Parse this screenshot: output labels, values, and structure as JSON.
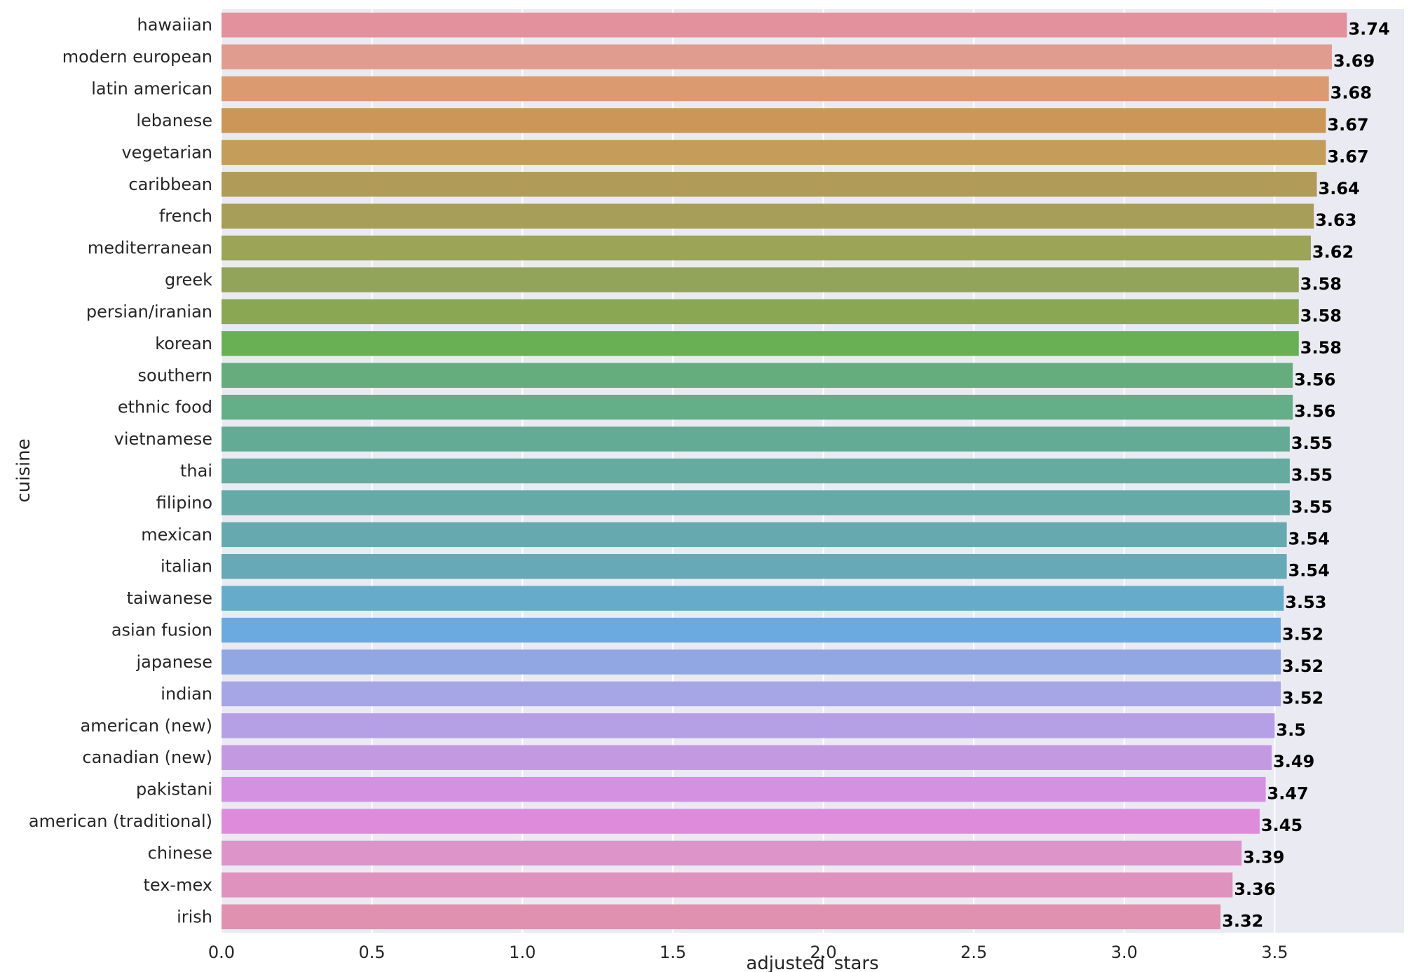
{
  "chart_data": {
    "type": "bar",
    "orientation": "horizontal",
    "xlabel": "adjusted_stars",
    "ylabel": "cuisine",
    "xlim": [
      0,
      3.93
    ],
    "xticks": [
      "0.0",
      "0.5",
      "1.0",
      "1.5",
      "2.0",
      "2.5",
      "3.0",
      "3.5"
    ],
    "grid": true,
    "categories": [
      "hawaiian",
      "modern european",
      "latin american",
      "lebanese",
      "vegetarian",
      "caribbean",
      "french",
      "mediterranean",
      "greek",
      "persian/iranian",
      "korean",
      "southern",
      "ethnic food",
      "vietnamese",
      "thai",
      "filipino",
      "mexican",
      "italian",
      "taiwanese",
      "asian fusion",
      "japanese",
      "indian",
      "american (new)",
      "canadian (new)",
      "pakistani",
      "american (traditional)",
      "chinese",
      "tex-mex",
      "irish"
    ],
    "values": [
      3.74,
      3.69,
      3.68,
      3.67,
      3.67,
      3.64,
      3.63,
      3.62,
      3.58,
      3.58,
      3.58,
      3.56,
      3.56,
      3.55,
      3.55,
      3.55,
      3.54,
      3.54,
      3.53,
      3.52,
      3.52,
      3.52,
      3.5,
      3.49,
      3.47,
      3.45,
      3.39,
      3.36,
      3.32
    ],
    "value_labels": [
      "3.74",
      "3.69",
      "3.68",
      "3.67",
      "3.67",
      "3.64",
      "3.63",
      "3.62",
      "3.58",
      "3.58",
      "3.58",
      "3.56",
      "3.56",
      "3.55",
      "3.55",
      "3.55",
      "3.54",
      "3.54",
      "3.53",
      "3.52",
      "3.52",
      "3.52",
      "3.5",
      "3.49",
      "3.47",
      "3.45",
      "3.39",
      "3.36",
      "3.32"
    ],
    "colors": [
      "#e2919d",
      "#e19c90",
      "#dc9a71",
      "#cc9659",
      "#c39d59",
      "#b09c58",
      "#a79f59",
      "#9ca458",
      "#92a459",
      "#8aa754",
      "#69b055",
      "#65ad7c",
      "#64ae88",
      "#64ab96",
      "#65aba0",
      "#66aaa8",
      "#66a9ae",
      "#67a9b6",
      "#67abcb",
      "#6aaae0",
      "#90a7e4",
      "#a6a6e6",
      "#b59fe5",
      "#c399e2",
      "#d491e1",
      "#df8bdb",
      "#dd94c9",
      "#de92bd",
      "#e091b0"
    ],
    "plot_bg": "#eaeaf2",
    "grid_color": "#ffffff"
  }
}
